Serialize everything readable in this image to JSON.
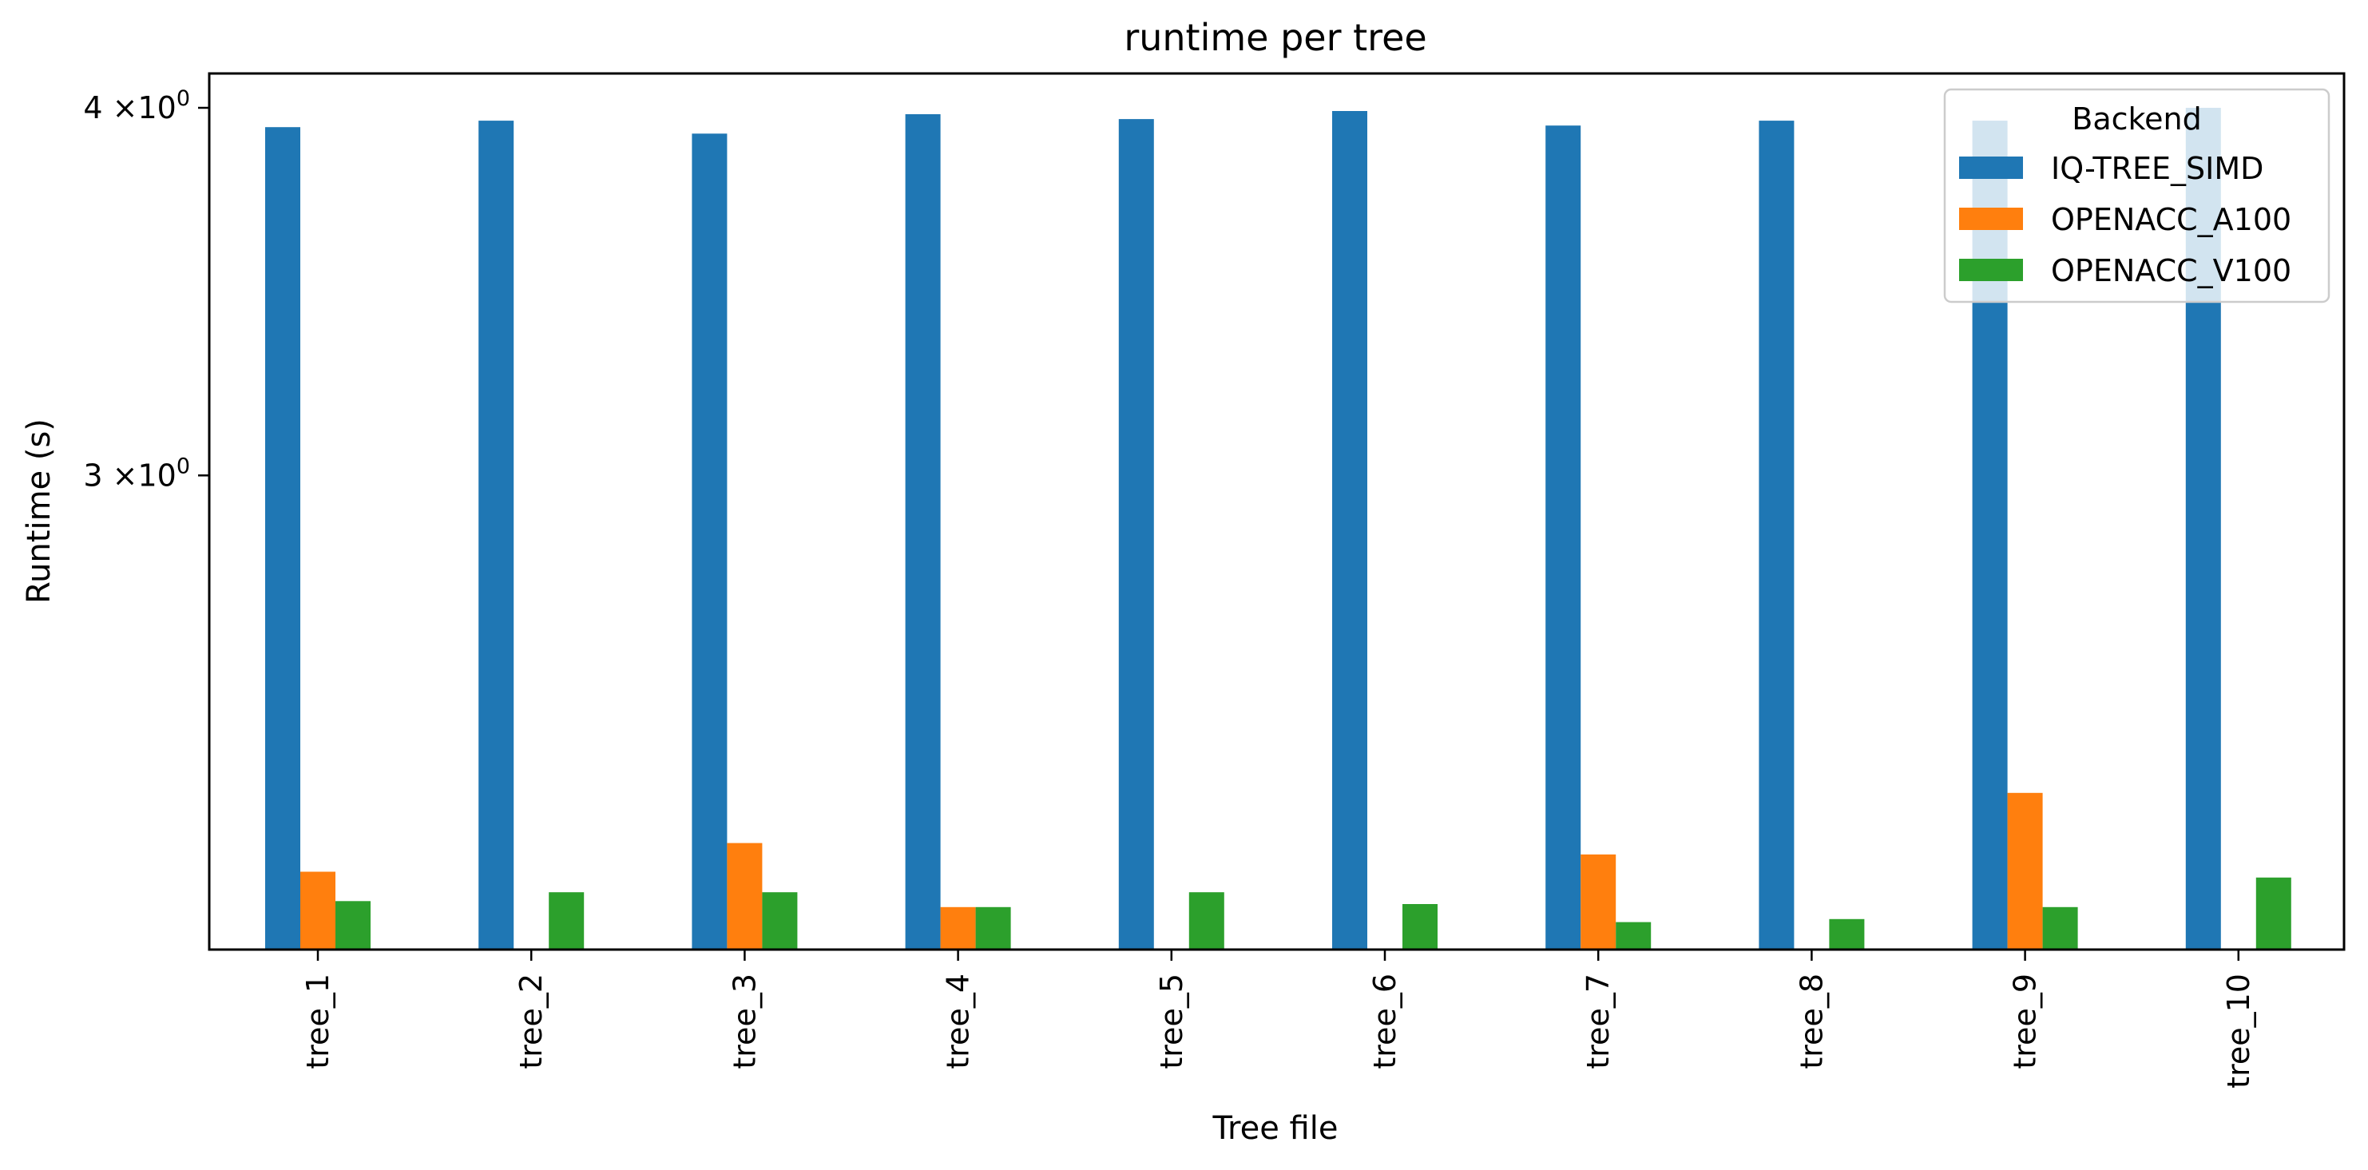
{
  "chart_data": {
    "type": "bar",
    "title": "runtime per tree",
    "xlabel": "Tree file",
    "ylabel": "Runtime (s)",
    "yscale": "log",
    "ylim": [
      2.0,
      4.0
    ],
    "yticks": [
      {
        "value": 4.0,
        "base": "4",
        "mid": "×10",
        "exp": "0"
      },
      {
        "value": 3.0,
        "base": "3",
        "mid": "×10",
        "exp": "0"
      }
    ],
    "categories": [
      "tree_1",
      "tree_2",
      "tree_3",
      "tree_4",
      "tree_5",
      "tree_6",
      "tree_7",
      "tree_8",
      "tree_9",
      "tree_10"
    ],
    "series": [
      {
        "name": "IQ-TREE_SIMD",
        "color": "#1f77b4",
        "values": [
          3.94,
          3.96,
          3.92,
          3.98,
          3.965,
          3.99,
          3.945,
          3.96,
          3.96,
          4.0
        ]
      },
      {
        "name": "OPENACC_A100",
        "color": "#ff7f0e",
        "values": [
          2.2,
          2.03,
          2.25,
          2.14,
          2.03,
          2.03,
          2.23,
          2.01,
          2.34,
          2.03
        ]
      },
      {
        "name": "OPENACC_V100",
        "color": "#2ca02c",
        "values": [
          2.15,
          2.165,
          2.165,
          2.14,
          2.165,
          2.145,
          2.115,
          2.12,
          2.14,
          2.19
        ]
      }
    ],
    "grid": false,
    "legend": {
      "title": "Backend",
      "position": "top-right"
    }
  }
}
